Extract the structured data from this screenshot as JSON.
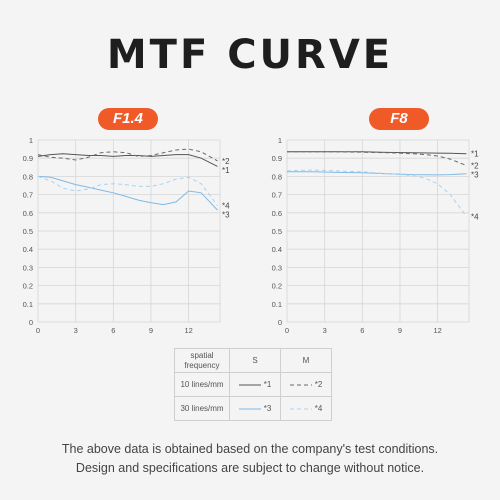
{
  "title": "MTF CURVE",
  "colors": {
    "accent": "#f05a28",
    "sagittal_line": "#555555",
    "meridional_line": "#6a6a6a",
    "s30_line": "#7fb9e6",
    "m30_line": "#a8d3f0"
  },
  "chart_data": [
    {
      "type": "line",
      "title": "F1.4",
      "x_ticks": [
        "0",
        "3",
        "6",
        "9",
        "12"
      ],
      "y_ticks": [
        "0",
        "0.1",
        "0.2",
        "0.3",
        "0.4",
        "0.5",
        "0.6",
        "0.7",
        "0.8",
        "0.9",
        "1"
      ],
      "xlim": [
        0,
        14.5
      ],
      "ylim": [
        0,
        1
      ],
      "grid": true,
      "series": [
        {
          "name": "*1",
          "x": [
            0,
            1,
            2,
            3,
            4,
            5,
            6,
            7,
            8,
            9,
            10,
            11,
            12,
            13,
            14.3
          ],
          "y": [
            0.91,
            0.92,
            0.925,
            0.92,
            0.915,
            0.915,
            0.91,
            0.915,
            0.915,
            0.91,
            0.915,
            0.92,
            0.92,
            0.9,
            0.855
          ]
        },
        {
          "name": "*2",
          "x": [
            0,
            1,
            2,
            3,
            4,
            5,
            6,
            7,
            8,
            9,
            10,
            11,
            12,
            13,
            14.3
          ],
          "y": [
            0.92,
            0.905,
            0.9,
            0.89,
            0.905,
            0.93,
            0.935,
            0.93,
            0.91,
            0.915,
            0.93,
            0.945,
            0.95,
            0.935,
            0.885
          ]
        },
        {
          "name": "*3",
          "x": [
            0,
            1,
            2,
            3,
            4,
            5,
            6,
            7,
            8,
            9,
            10,
            11,
            12,
            13,
            14.3
          ],
          "y": [
            0.8,
            0.795,
            0.775,
            0.755,
            0.74,
            0.725,
            0.71,
            0.69,
            0.67,
            0.655,
            0.645,
            0.66,
            0.72,
            0.71,
            0.615
          ]
        },
        {
          "name": "*4",
          "x": [
            0,
            1,
            2,
            3,
            4,
            5,
            6,
            7,
            8,
            9,
            10,
            11,
            12,
            13,
            14.3
          ],
          "y": [
            0.8,
            0.775,
            0.735,
            0.72,
            0.73,
            0.755,
            0.76,
            0.755,
            0.745,
            0.745,
            0.76,
            0.785,
            0.795,
            0.76,
            0.64
          ]
        }
      ],
      "series_labels": [
        "*2",
        "*1",
        "*4",
        "*3"
      ]
    },
    {
      "type": "line",
      "title": "F8",
      "x_ticks": [
        "0",
        "3",
        "6",
        "9",
        "12"
      ],
      "y_ticks": [
        "0",
        "0.1",
        "0.2",
        "0.3",
        "0.4",
        "0.5",
        "0.6",
        "0.7",
        "0.8",
        "0.9",
        "1"
      ],
      "xlim": [
        0,
        14.5
      ],
      "ylim": [
        0,
        1
      ],
      "grid": true,
      "series": [
        {
          "name": "*1",
          "x": [
            0,
            2,
            4,
            6,
            8,
            10,
            12,
            13,
            14.3
          ],
          "y": [
            0.935,
            0.935,
            0.935,
            0.935,
            0.932,
            0.93,
            0.928,
            0.927,
            0.925
          ]
        },
        {
          "name": "*2",
          "x": [
            0,
            2,
            4,
            6,
            8,
            10,
            11,
            12,
            13,
            14.3
          ],
          "y": [
            0.935,
            0.935,
            0.935,
            0.933,
            0.93,
            0.925,
            0.92,
            0.912,
            0.895,
            0.86
          ]
        },
        {
          "name": "*3",
          "x": [
            0,
            2,
            4,
            6,
            8,
            10,
            12,
            13,
            14.3
          ],
          "y": [
            0.825,
            0.825,
            0.822,
            0.82,
            0.815,
            0.81,
            0.808,
            0.81,
            0.815
          ]
        },
        {
          "name": "*4",
          "x": [
            0,
            2,
            4,
            6,
            8,
            10,
            11,
            12,
            13,
            14.3
          ],
          "y": [
            0.83,
            0.835,
            0.83,
            0.825,
            0.815,
            0.805,
            0.79,
            0.76,
            0.7,
            0.58
          ]
        }
      ],
      "series_labels": [
        "*1",
        "*2",
        "*3",
        "*4"
      ]
    }
  ],
  "legend": {
    "header_freq": "spatial frequency",
    "header_s": "S",
    "header_m": "M",
    "row1_label": "10 lines/mm",
    "row1_s": "*1",
    "row1_m": "*2",
    "row2_label": "30 lines/mm",
    "row2_s": "*3",
    "row2_m": "*4"
  },
  "footnote": {
    "line1": "The above data is obtained based on the company's test conditions.",
    "line2": "Design and specifications are subject to change without notice."
  }
}
